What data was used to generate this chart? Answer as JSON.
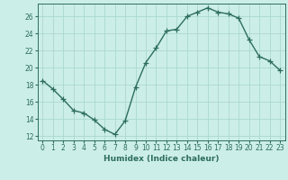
{
  "x": [
    0,
    1,
    2,
    3,
    4,
    5,
    6,
    7,
    8,
    9,
    10,
    11,
    12,
    13,
    14,
    15,
    16,
    17,
    18,
    19,
    20,
    21,
    22,
    23
  ],
  "y": [
    18.5,
    17.5,
    16.3,
    15.0,
    14.7,
    13.9,
    12.8,
    12.2,
    13.8,
    17.7,
    20.6,
    22.3,
    24.3,
    24.5,
    26.0,
    26.5,
    27.0,
    26.5,
    26.3,
    25.8,
    23.3,
    21.3,
    20.8,
    19.7
  ],
  "line_color": "#2d6e5e",
  "marker": "+",
  "marker_size": 4,
  "bg_color": "#cceee8",
  "grid_color": "#aad8d0",
  "xlabel": "Humidex (Indice chaleur)",
  "ylim": [
    11.5,
    27.5
  ],
  "xlim": [
    -0.5,
    23.5
  ],
  "yticks": [
    12,
    14,
    16,
    18,
    20,
    22,
    24,
    26
  ],
  "xticks": [
    0,
    1,
    2,
    3,
    4,
    5,
    6,
    7,
    8,
    9,
    10,
    11,
    12,
    13,
    14,
    15,
    16,
    17,
    18,
    19,
    20,
    21,
    22,
    23
  ],
  "font_color": "#2d6e5e",
  "tick_fontsize": 5.5,
  "xlabel_fontsize": 6.5
}
